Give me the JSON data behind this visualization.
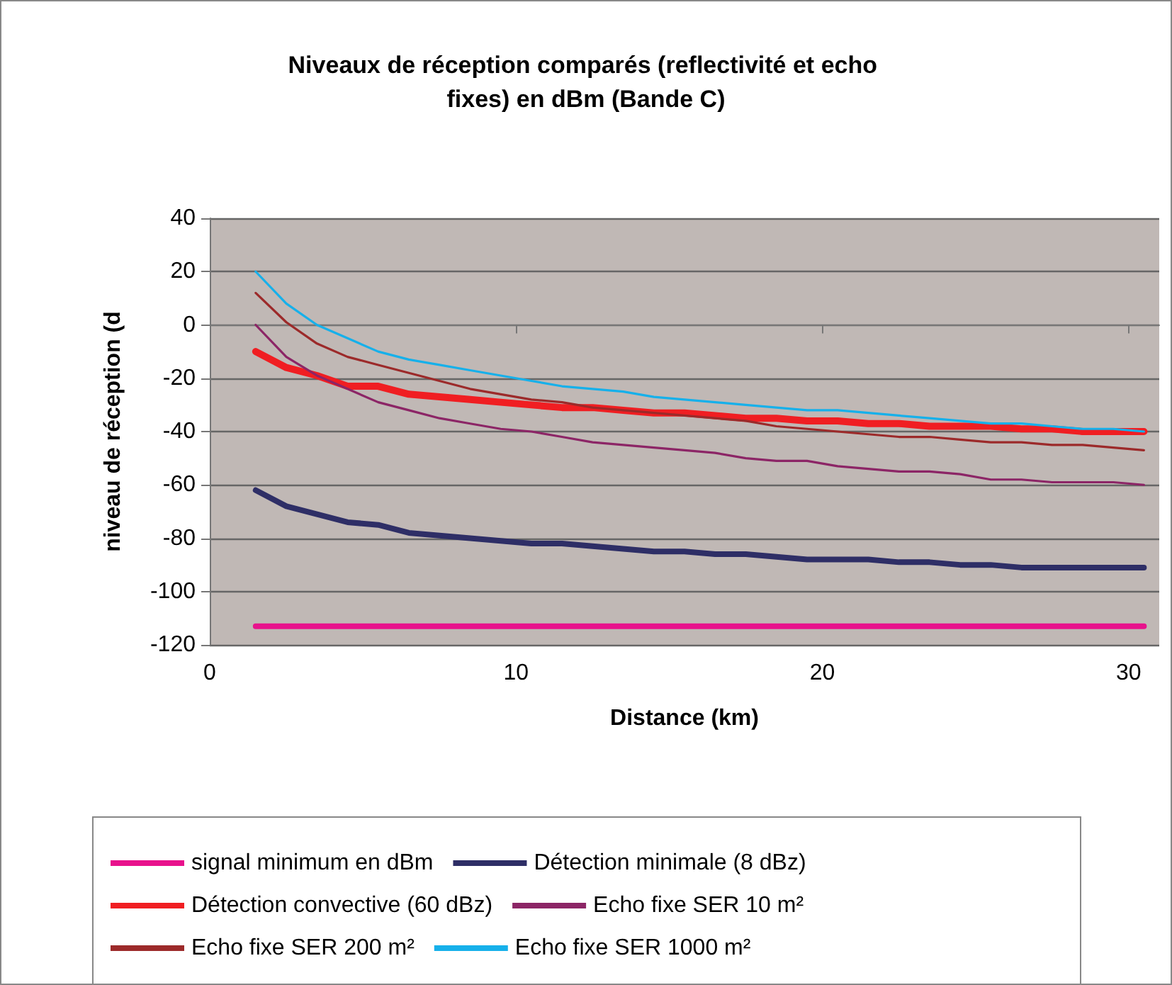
{
  "chart_data": {
    "type": "line",
    "title": "Niveaux de réception comparés (reflectivité et echo fixes) en dBm (Bande C)",
    "xlabel": "Distance (km)",
    "ylabel": "niveau de réception (d",
    "x": [
      1.5,
      2.5,
      3.5,
      4.5,
      5.5,
      6.5,
      7.5,
      8.5,
      9.5,
      10.5,
      11.5,
      12.5,
      13.5,
      14.5,
      15.5,
      16.5,
      17.5,
      18.5,
      19.5,
      20.5,
      21.5,
      22.5,
      23.5,
      24.5,
      25.5,
      26.5,
      27.5,
      28.5,
      29.5,
      30.5
    ],
    "xlim": [
      0,
      31
    ],
    "xticks": [
      0,
      10,
      20,
      30
    ],
    "ylim": [
      -120,
      40
    ],
    "yticks": [
      -120,
      -100,
      -80,
      -60,
      -40,
      -20,
      0,
      20,
      40
    ],
    "grid": "y",
    "legend": "bottom",
    "marker": "none",
    "line_style": "solid",
    "series": [
      {
        "name": "signal minimum en dBm",
        "color": "#e8128c",
        "values": [
          -113,
          -113,
          -113,
          -113,
          -113,
          -113,
          -113,
          -113,
          -113,
          -113,
          -113,
          -113,
          -113,
          -113,
          -113,
          -113,
          -113,
          -113,
          -113,
          -113,
          -113,
          -113,
          -113,
          -113,
          -113,
          -113,
          -113,
          -113,
          -113,
          -113
        ]
      },
      {
        "name": "Détection minimale (8 dBz)",
        "color": "#2e2e66",
        "values": [
          -62,
          -68,
          -71,
          -74,
          -75,
          -78,
          -79,
          -80,
          -81,
          -82,
          -82,
          -83,
          -84,
          -85,
          -85,
          -86,
          -86,
          -87,
          -88,
          -88,
          -88,
          -89,
          -89,
          -90,
          -90,
          -91,
          -91,
          -91,
          -91,
          -91
        ]
      },
      {
        "name": "Détection convective (60 dBz)",
        "color": "#f01e22",
        "values": [
          -10,
          -16,
          -19,
          -23,
          -23,
          -26,
          -27,
          -28,
          -29,
          -30,
          -31,
          -31,
          -32,
          -33,
          -33,
          -34,
          -35,
          -35,
          -36,
          -36,
          -37,
          -37,
          -38,
          -38,
          -38,
          -39,
          -39,
          -40,
          -40,
          -40
        ]
      },
      {
        "name": "Echo fixe SER 10 m²",
        "color": "#8c2566",
        "values": [
          0,
          -12,
          -19,
          -24,
          -29,
          -32,
          -35,
          -37,
          -39,
          -40,
          -42,
          -44,
          -45,
          -46,
          -47,
          -48,
          -50,
          -51,
          -51,
          -53,
          -54,
          -55,
          -55,
          -56,
          -58,
          -58,
          -59,
          -59,
          -59,
          -60
        ]
      },
      {
        "name": "Echo fixe SER 200 m²",
        "color": "#9c2a2a",
        "values": [
          12,
          1,
          -7,
          -12,
          -15,
          -18,
          -21,
          -24,
          -26,
          -28,
          -29,
          -31,
          -32,
          -33,
          -34,
          -35,
          -36,
          -38,
          -39,
          -40,
          -41,
          -42,
          -42,
          -43,
          -44,
          -44,
          -45,
          -45,
          -46,
          -47
        ]
      },
      {
        "name": "Echo fixe SER 1000 m²",
        "color": "#16b0ea",
        "values": [
          20,
          8,
          0,
          -5,
          -10,
          -13,
          -15,
          -17,
          -19,
          -21,
          -23,
          -24,
          -25,
          -27,
          -28,
          -29,
          -30,
          -31,
          -32,
          -32,
          -33,
          -34,
          -35,
          -36,
          -37,
          -37,
          -38,
          -39,
          -39,
          -40
        ]
      }
    ]
  }
}
